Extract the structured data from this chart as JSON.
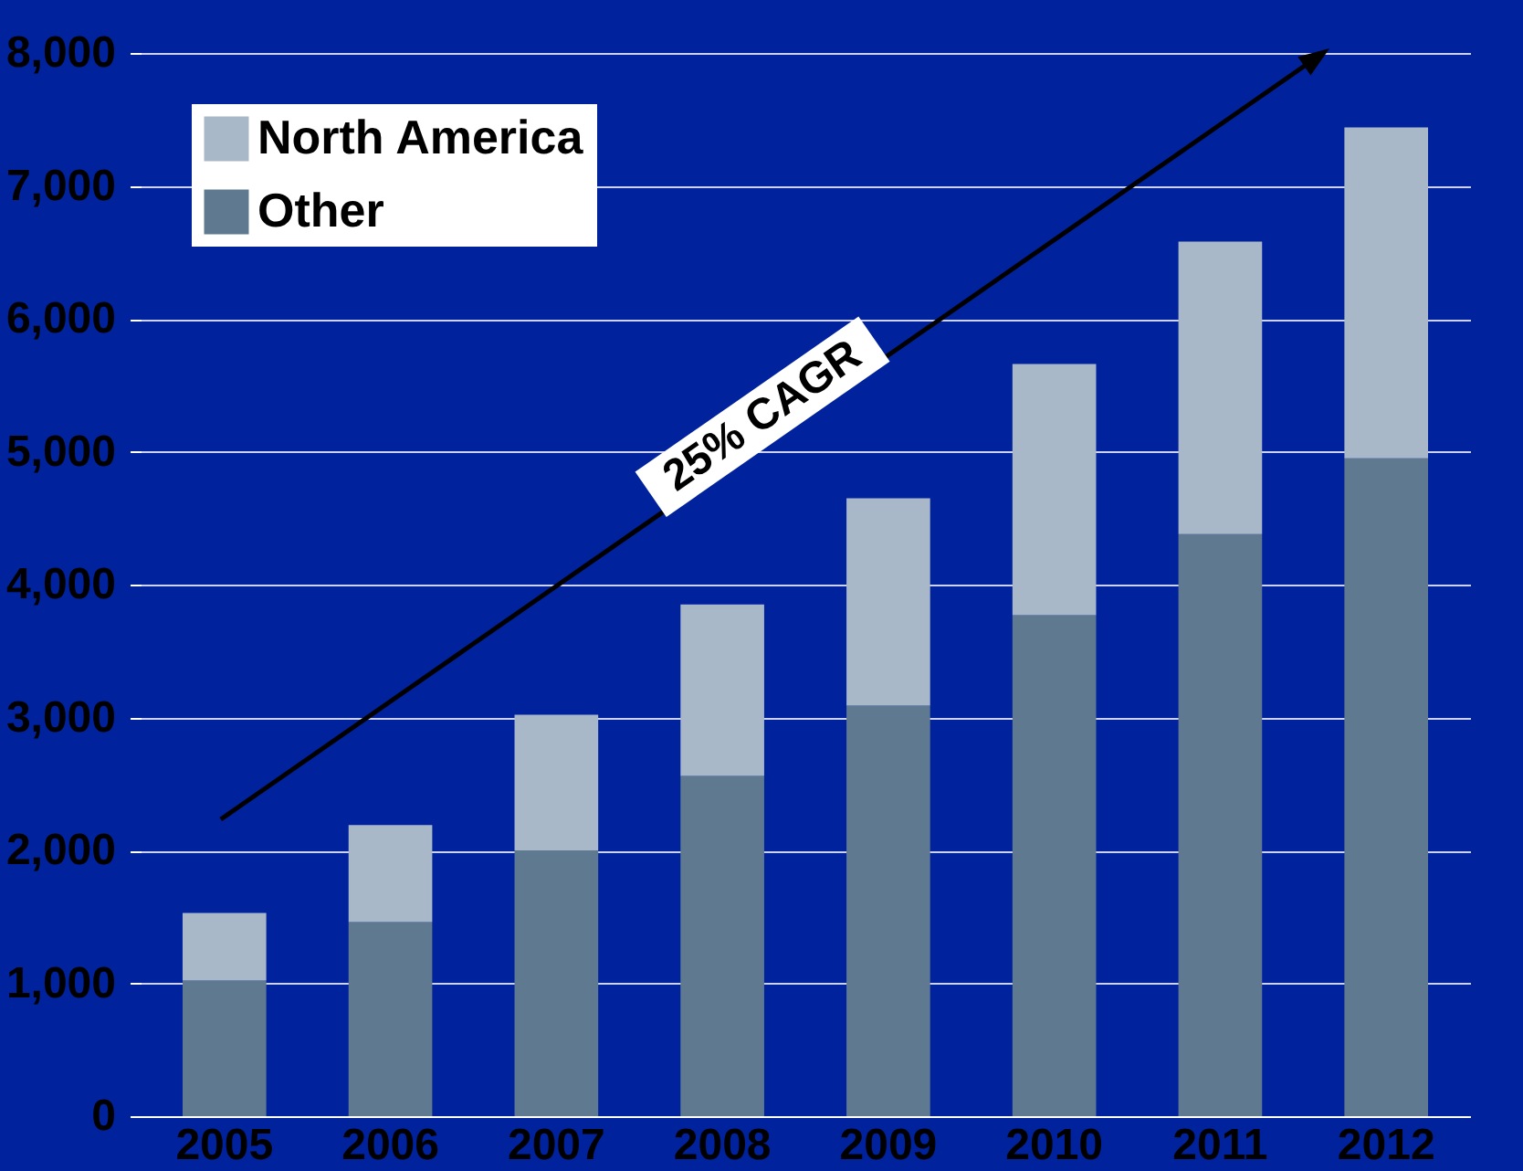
{
  "chart_data": {
    "type": "bar",
    "stacked": true,
    "categories": [
      "2005",
      "2006",
      "2007",
      "2008",
      "2009",
      "2010",
      "2011",
      "2012"
    ],
    "series": [
      {
        "name": "Other",
        "color": "#5f7a90",
        "values": [
          1020,
          1460,
          2000,
          2560,
          3090,
          3770,
          4380,
          4950
        ]
      },
      {
        "name": "North America",
        "color": "#a9b8c8",
        "values": [
          510,
          730,
          1020,
          1290,
          1560,
          1890,
          2200,
          2490
        ]
      }
    ],
    "ylim": [
      0,
      8000
    ],
    "yticks": [
      0,
      {
        "value": 1000,
        "label": "1,000"
      },
      {
        "value": 2000,
        "label": "2,000"
      },
      {
        "value": 3000,
        "label": "3,000"
      },
      {
        "value": 4000,
        "label": "4,000"
      },
      {
        "value": 5000,
        "label": "5,000"
      },
      {
        "value": 6000,
        "label": "6,000"
      },
      {
        "value": 7000,
        "label": "7,000"
      },
      {
        "value": 8000,
        "label": "8,000"
      }
    ],
    "grid": "y",
    "legend": "top left",
    "annotations": [
      "25% CAGR"
    ]
  }
}
